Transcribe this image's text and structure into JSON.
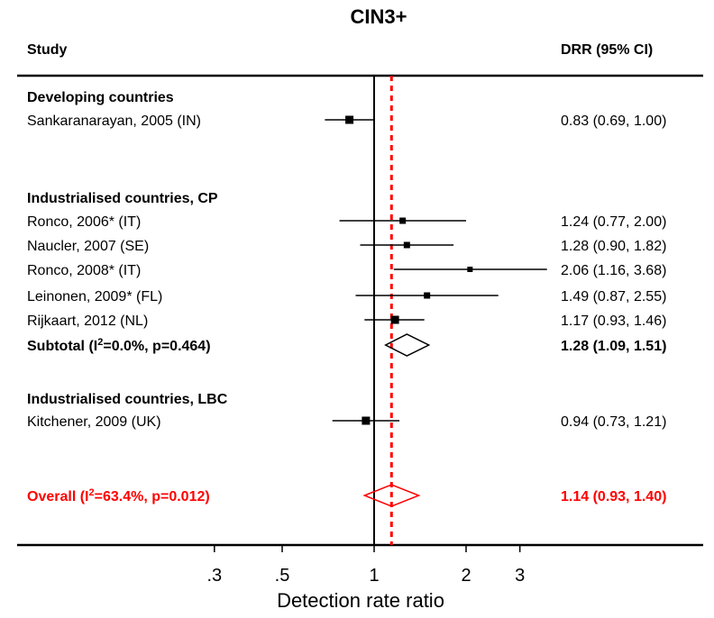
{
  "chart_data": {
    "type": "forest",
    "title": "CIN3+",
    "col_study": "Study",
    "col_ci": "DRR (95% CI)",
    "xlabel": "Detection rate ratio",
    "x_scale": "log",
    "xticks": [
      0.3,
      0.5,
      1,
      2,
      3
    ],
    "xtick_labels": [
      ".3",
      ".5",
      "1",
      "2",
      "3"
    ],
    "xlim": [
      0.3,
      3.68
    ],
    "null_line": 1,
    "overall_line": 1.14,
    "groups": [
      {
        "heading": "Developing countries",
        "studies": [
          {
            "label": "Sankaranarayan, 2005 (IN)",
            "est": 0.83,
            "lo": 0.69,
            "hi": 1.0,
            "ci_text": "0.83 (0.69, 1.00)"
          }
        ]
      },
      {
        "heading": "Industrialised countries, CP",
        "studies": [
          {
            "label": "Ronco, 2006* (IT)",
            "est": 1.24,
            "lo": 0.77,
            "hi": 2.0,
            "ci_text": "1.24 (0.77, 2.00)"
          },
          {
            "label": "Naucler, 2007 (SE)",
            "est": 1.28,
            "lo": 0.9,
            "hi": 1.82,
            "ci_text": "1.28 (0.90, 1.82)"
          },
          {
            "label": "Ronco, 2008* (IT)",
            "est": 2.06,
            "lo": 1.16,
            "hi": 3.68,
            "ci_text": "2.06 (1.16, 3.68)"
          },
          {
            "label": "Leinonen, 2009* (FL)",
            "est": 1.49,
            "lo": 0.87,
            "hi": 2.55,
            "ci_text": "1.49 (0.87, 2.55)"
          },
          {
            "label": "Rijkaart, 2012 (NL)",
            "est": 1.17,
            "lo": 0.93,
            "hi": 1.46,
            "ci_text": "1.17 (0.93, 1.46)"
          }
        ],
        "subtotal": {
          "label_main": "Subtotal  (I",
          "label_sup": "2",
          "label_rest": "=0.0%, p=0.464)",
          "est": 1.28,
          "lo": 1.09,
          "hi": 1.51,
          "ci_text": "1.28 (1.09, 1.51)"
        }
      },
      {
        "heading": "Industrialised countries, LBC",
        "studies": [
          {
            "label": "Kitchener, 2009 (UK)",
            "est": 0.94,
            "lo": 0.73,
            "hi": 1.21,
            "ci_text": "0.94 (0.73, 1.21)"
          }
        ]
      }
    ],
    "overall": {
      "label_main": "Overall  (I",
      "label_sup": "2",
      "label_rest": "=63.4%, p=0.012)",
      "est": 1.14,
      "lo": 0.93,
      "hi": 1.4,
      "ci_text": "1.14 (0.93, 1.40)"
    },
    "colors": {
      "text": "#000000",
      "overall": "#ff0000",
      "overall_line": "#ff0000"
    }
  }
}
